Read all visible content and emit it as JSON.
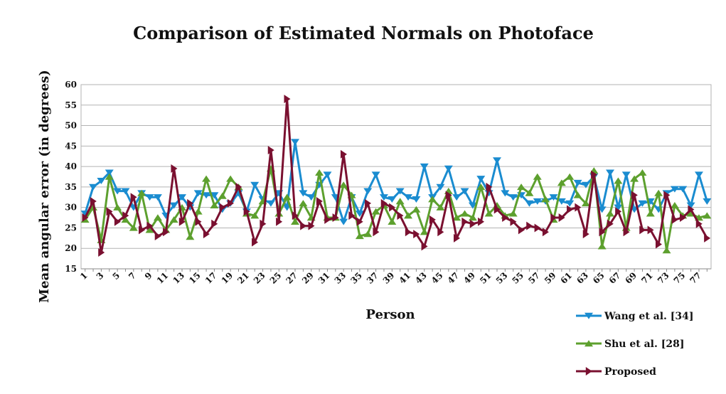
{
  "chart_data": {
    "type": "line",
    "title": "Comparison of Estimated Normals on Photoface",
    "xlabel": "Person",
    "ylabel": "Mean angular error (in degrees)",
    "ylim": [
      15,
      60
    ],
    "yticks": [
      15,
      20,
      25,
      30,
      35,
      40,
      45,
      50,
      55,
      60
    ],
    "x": [
      1,
      2,
      3,
      4,
      5,
      6,
      7,
      8,
      9,
      10,
      11,
      12,
      13,
      14,
      15,
      16,
      17,
      18,
      19,
      20,
      21,
      22,
      23,
      24,
      25,
      26,
      27,
      28,
      29,
      30,
      31,
      32,
      33,
      34,
      35,
      36,
      37,
      38,
      39,
      40,
      41,
      42,
      43,
      44,
      45,
      46,
      47,
      48,
      49,
      50,
      51,
      52,
      53,
      54,
      55,
      56,
      57,
      58,
      59,
      60,
      61,
      62,
      63,
      64,
      65,
      66,
      67,
      68,
      69,
      70,
      71,
      72,
      73,
      74,
      75,
      76,
      77,
      78
    ],
    "xtick_labels": [
      "1",
      "3",
      "5",
      "7",
      "9",
      "11",
      "13",
      "15",
      "17",
      "19",
      "21",
      "23",
      "25",
      "27",
      "29",
      "31",
      "33",
      "35",
      "37",
      "39",
      "41",
      "43",
      "45",
      "47",
      "49",
      "51",
      "53",
      "55",
      "57",
      "59",
      "61",
      "63",
      "65",
      "67",
      "69",
      "71",
      "73",
      "75",
      "77"
    ],
    "grid": "horizontal",
    "legend_position": "bottom-right",
    "series": [
      {
        "name": "Wang et al. [34]",
        "color": "#1a8cd0",
        "marker": "triangle-down",
        "values": [
          28.5,
          35,
          36.5,
          38.5,
          34,
          34,
          30,
          33.5,
          32.5,
          32.5,
          28,
          30.5,
          32.5,
          30,
          33.5,
          33,
          33,
          29.5,
          31,
          33.5,
          29,
          35.5,
          32,
          31,
          33.5,
          30,
          46,
          33.5,
          32.5,
          35.5,
          38,
          32.5,
          26.5,
          32.5,
          28.5,
          34,
          38,
          32.5,
          32,
          34,
          32.5,
          32,
          40,
          32.5,
          35,
          39.5,
          32.5,
          34,
          30.5,
          37,
          33.5,
          41.5,
          33.5,
          32.5,
          33,
          31,
          31.5,
          31.5,
          32.5,
          31.5,
          31,
          36,
          35.5,
          37.5,
          29.5,
          38.5,
          30,
          38,
          29.5,
          31,
          31.5,
          29.5,
          33.5,
          34.5,
          34.5,
          30.5,
          38,
          31.5
        ]
      },
      {
        "name": "Shu et al. [28]",
        "color": "#5da02e",
        "marker": "triangle-up",
        "values": [
          27,
          30,
          22,
          37.5,
          30,
          27,
          25,
          33.5,
          24.5,
          27.5,
          24.5,
          27,
          30,
          22.8,
          29,
          37,
          30.5,
          32.8,
          37,
          35,
          28.5,
          28,
          31.5,
          39.5,
          28.5,
          32.5,
          26.5,
          31,
          27.5,
          38.5,
          27.5,
          27.5,
          35.5,
          33,
          23,
          23.5,
          29,
          30.5,
          26.5,
          31.5,
          28,
          29.5,
          24,
          32,
          30,
          34,
          27.5,
          28.5,
          27.5,
          35,
          28.5,
          30.5,
          28,
          28.5,
          35,
          33.5,
          37.5,
          32,
          27,
          36,
          37.5,
          33,
          31,
          39,
          20.5,
          28.5,
          36.5,
          25,
          37,
          38.5,
          28.5,
          33.5,
          19.5,
          30.5,
          28,
          28.5,
          27.5,
          28
        ]
      },
      {
        "name": "Proposed",
        "color": "#7a1030",
        "marker": "triangle-right",
        "values": [
          27.5,
          31.5,
          19,
          29,
          26.5,
          28,
          32.5,
          24.5,
          25.5,
          23,
          24,
          39.5,
          26.5,
          31,
          26.5,
          23.5,
          26,
          30,
          31,
          35,
          29,
          21.5,
          26,
          44,
          26.5,
          56.5,
          28,
          25.5,
          25.5,
          31.5,
          27,
          27.5,
          43,
          28,
          26.5,
          31,
          24,
          31,
          30,
          28,
          24,
          23.5,
          20.5,
          27,
          24,
          33,
          22.5,
          26.5,
          26,
          26.5,
          35,
          29.5,
          27.5,
          26.5,
          24.5,
          25.5,
          25,
          24,
          27.5,
          27.5,
          29.5,
          30,
          23.5,
          38,
          24,
          26,
          29,
          24,
          33,
          24.5,
          24.5,
          21,
          33,
          27,
          27.5,
          29.5,
          26,
          22.5
        ]
      }
    ]
  }
}
